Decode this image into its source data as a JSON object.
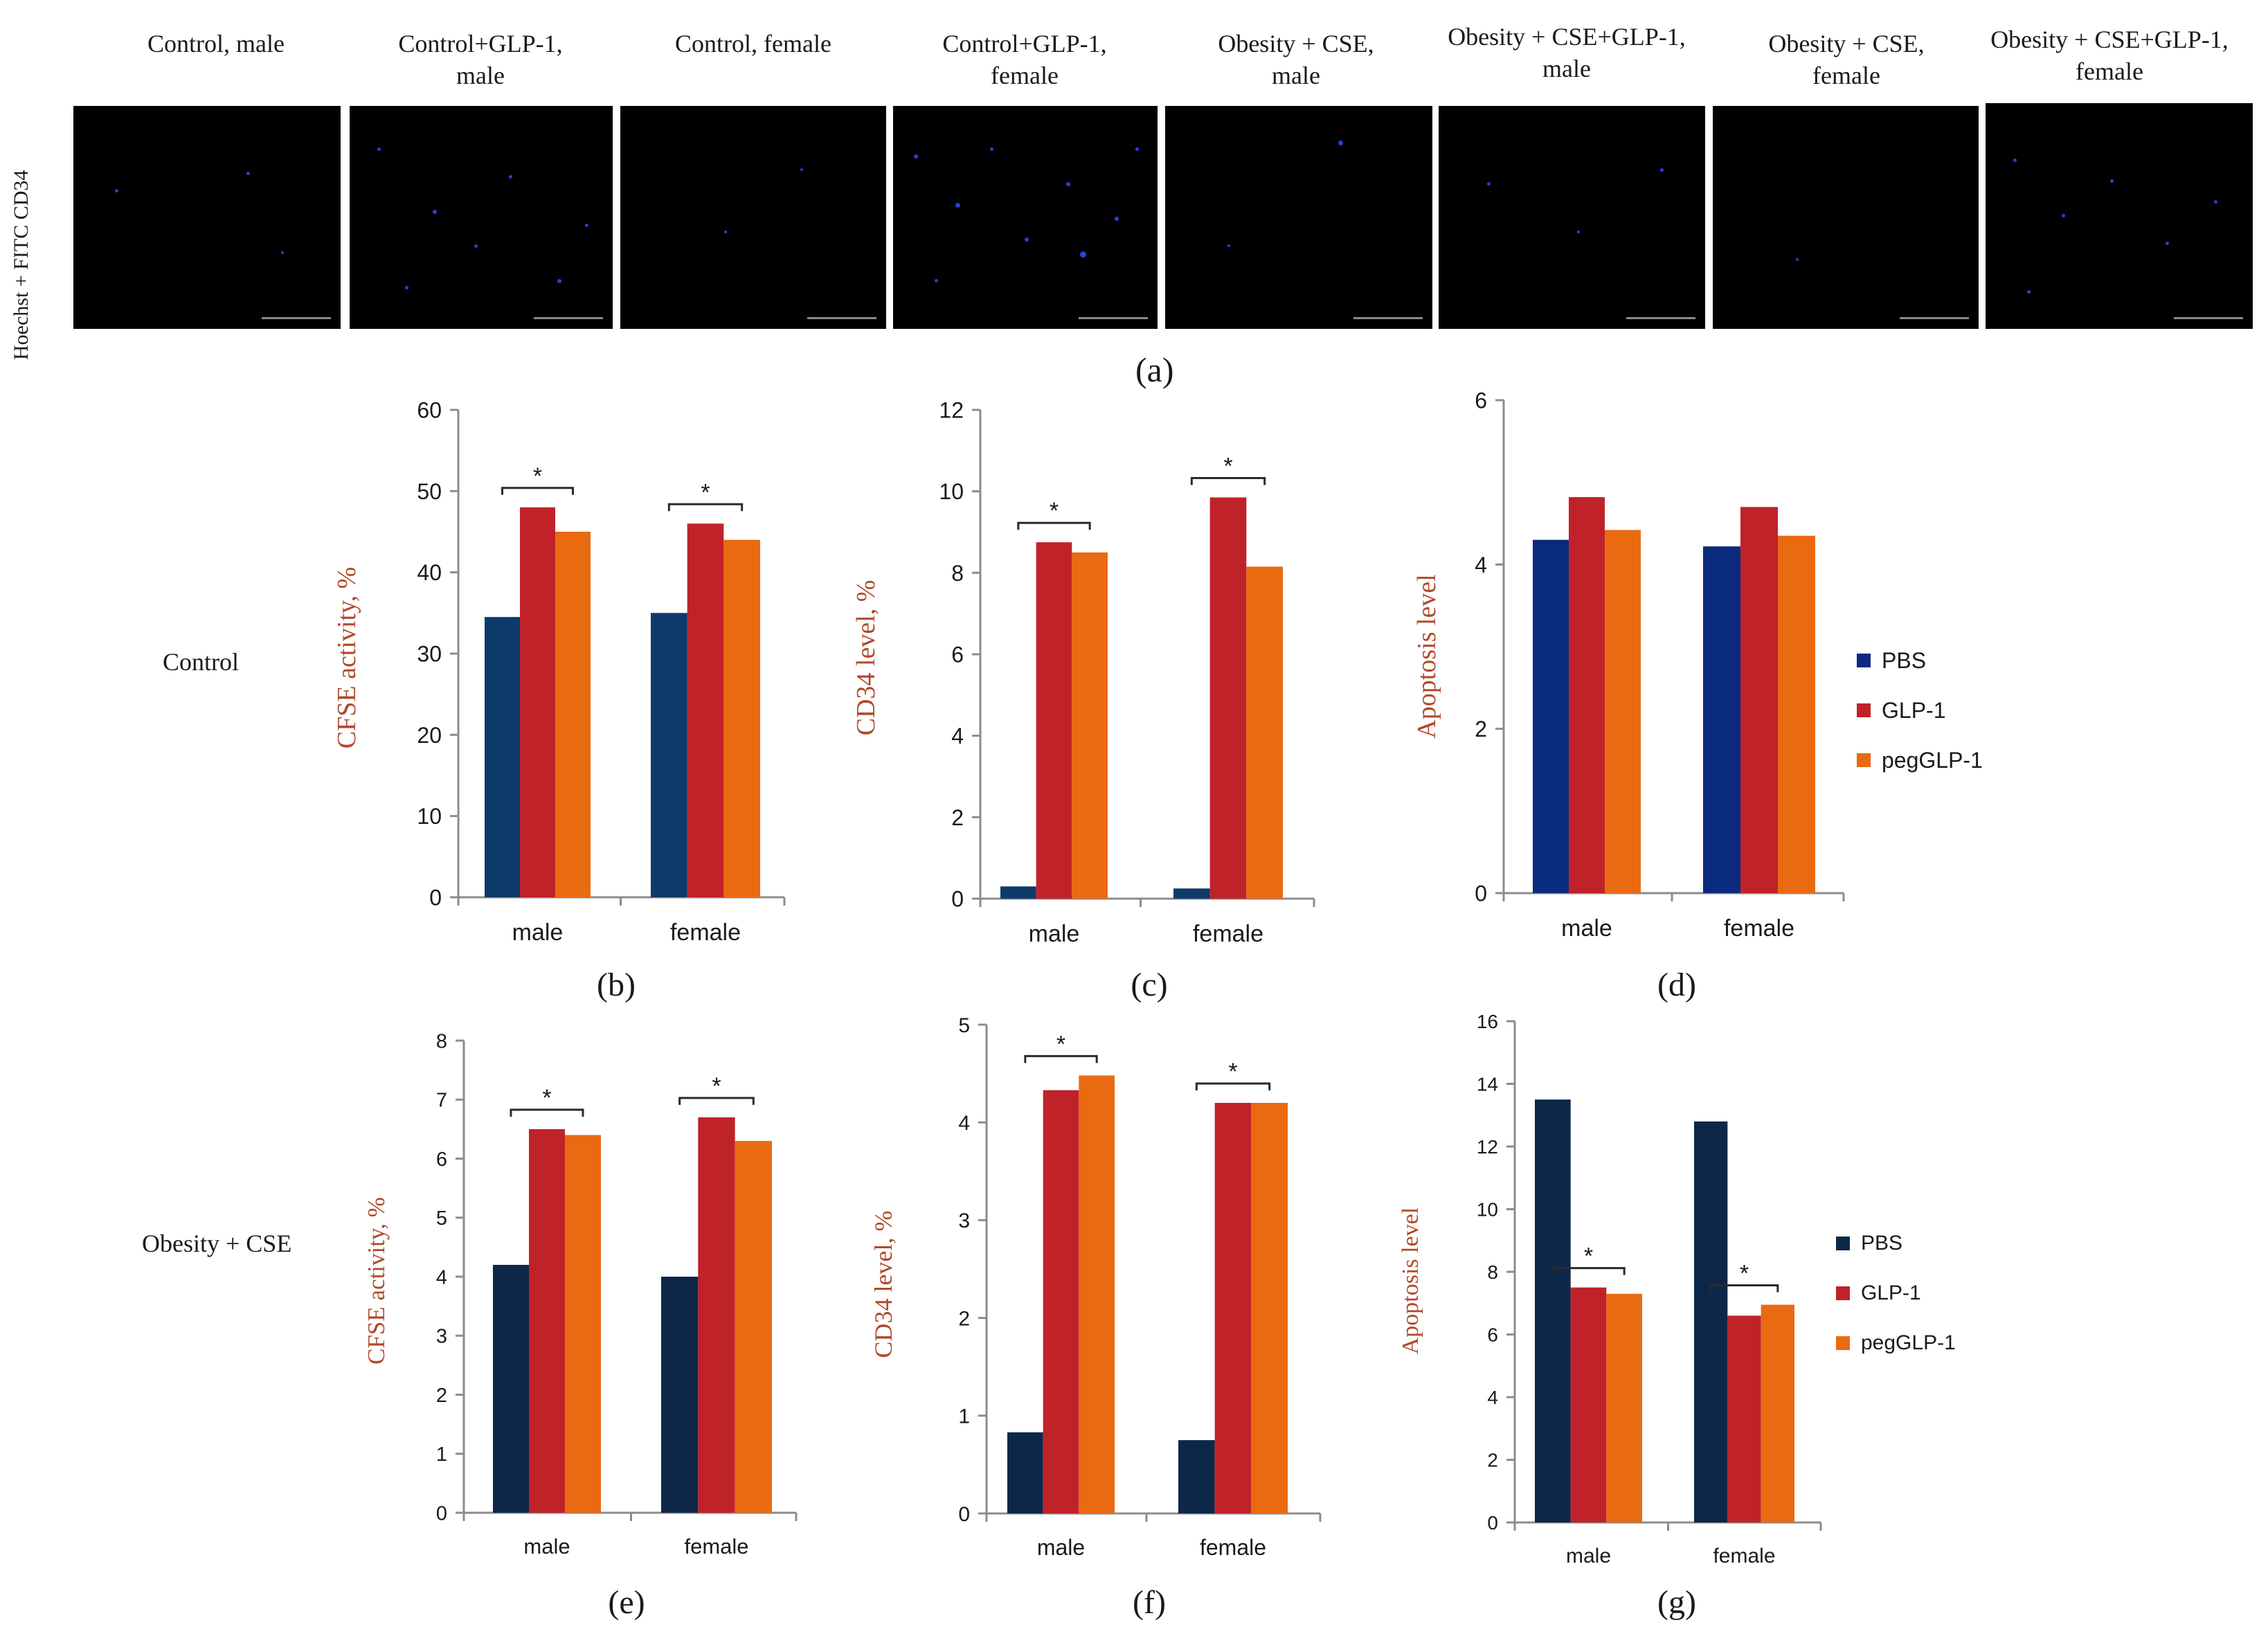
{
  "micrograph_row": {
    "stain_label": "Hoechst + FITC CD34",
    "panel_letter": "(a)",
    "images": [
      {
        "label_line1": "Control, male",
        "label_line2": ""
      },
      {
        "label_line1": "Control+GLP-1,",
        "label_line2": "male"
      },
      {
        "label_line1": "Control, female",
        "label_line2": ""
      },
      {
        "label_line1": "Control+GLP-1,",
        "label_line2": "female"
      },
      {
        "label_line1": "Obesity + CSE,",
        "label_line2": "male"
      },
      {
        "label_line1": "Obesity + CSE+GLP-1,",
        "label_line2": "male"
      },
      {
        "label_line1": "Obesity + CSE,",
        "label_line2": "female"
      },
      {
        "label_line1": "Obesity + CSE+GLP-1,",
        "label_line2": "female"
      }
    ]
  },
  "row_labels": {
    "control": "Control",
    "obesity": "Obesity + CSE"
  },
  "legend": {
    "top": [
      "PBS",
      "GLP-1",
      "pegGLP-1"
    ],
    "bottom": [
      "PBS",
      "GLP-1",
      "pegGLP-1"
    ]
  },
  "colors": {
    "top": [
      "#0e3a6a",
      "#c0222a",
      "#ea6a12"
    ],
    "bottom": [
      "#0d2748",
      "#c0222a",
      "#ea6a12"
    ],
    "d_pbs": "#0a2a7e"
  },
  "chart_data": [
    {
      "id": "b",
      "panel_letter": "(b)",
      "type": "bar",
      "categories": [
        "male",
        "female"
      ],
      "series": [
        {
          "name": "PBS",
          "values": [
            34.5,
            35
          ]
        },
        {
          "name": "GLP-1",
          "values": [
            48,
            46
          ]
        },
        {
          "name": "pegGLP-1",
          "values": [
            45,
            44
          ]
        }
      ],
      "ylabel": "CFSE activity, %",
      "ylim": [
        0,
        60
      ],
      "yticks": [
        0,
        10,
        20,
        30,
        40,
        50,
        60
      ],
      "significance": [
        "*",
        "*"
      ]
    },
    {
      "id": "c",
      "panel_letter": "(c)",
      "type": "bar",
      "categories": [
        "male",
        "female"
      ],
      "series": [
        {
          "name": "PBS",
          "values": [
            0.3,
            0.25
          ]
        },
        {
          "name": "GLP-1",
          "values": [
            8.75,
            9.85
          ]
        },
        {
          "name": "pegGLP-1",
          "values": [
            8.5,
            8.15
          ]
        }
      ],
      "ylabel": "CD34 level, %",
      "ylim": [
        0,
        12
      ],
      "yticks": [
        0,
        2,
        4,
        6,
        8,
        10,
        12
      ],
      "significance": [
        "*",
        "*"
      ]
    },
    {
      "id": "d",
      "panel_letter": "(d)",
      "type": "bar",
      "categories": [
        "male",
        "female"
      ],
      "series": [
        {
          "name": "PBS",
          "values": [
            4.3,
            4.22
          ]
        },
        {
          "name": "GLP-1",
          "values": [
            4.82,
            4.7
          ]
        },
        {
          "name": "pegGLP-1",
          "values": [
            4.42,
            4.35
          ]
        }
      ],
      "ylabel": "Apoptosis  level",
      "ylim": [
        0,
        6
      ],
      "yticks": [
        0,
        2,
        4,
        6
      ],
      "significance": []
    },
    {
      "id": "e",
      "panel_letter": "(e)",
      "type": "bar",
      "categories": [
        "male",
        "female"
      ],
      "series": [
        {
          "name": "PBS",
          "values": [
            4.2,
            4.0
          ]
        },
        {
          "name": "GLP-1",
          "values": [
            6.5,
            6.7
          ]
        },
        {
          "name": "pegGLP-1",
          "values": [
            6.4,
            6.3
          ]
        }
      ],
      "ylabel": "CFSE activity, %",
      "ylim": [
        0,
        8
      ],
      "yticks": [
        0,
        1,
        2,
        3,
        4,
        5,
        6,
        7,
        8
      ],
      "significance": [
        "*",
        "*"
      ]
    },
    {
      "id": "f",
      "panel_letter": "(f)",
      "type": "bar",
      "categories": [
        "male",
        "female"
      ],
      "series": [
        {
          "name": "PBS",
          "values": [
            0.83,
            0.75
          ]
        },
        {
          "name": "GLP-1",
          "values": [
            4.33,
            4.2
          ]
        },
        {
          "name": "pegGLP-1",
          "values": [
            4.48,
            4.2
          ]
        }
      ],
      "ylabel": "CD34 level, %",
      "ylim": [
        0,
        5
      ],
      "yticks": [
        0,
        1,
        2,
        3,
        4,
        5
      ],
      "significance": [
        "*",
        "*"
      ]
    },
    {
      "id": "g",
      "panel_letter": "(g)",
      "type": "bar",
      "categories": [
        "male",
        "female"
      ],
      "series": [
        {
          "name": "PBS",
          "values": [
            13.5,
            12.8
          ]
        },
        {
          "name": "GLP-1",
          "values": [
            7.5,
            6.6
          ]
        },
        {
          "name": "pegGLP-1",
          "values": [
            7.3,
            6.95
          ]
        }
      ],
      "ylabel": "Apoptosis  level",
      "ylim": [
        0,
        16
      ],
      "yticks": [
        0,
        2,
        4,
        6,
        8,
        10,
        12,
        14,
        16
      ],
      "significance": [
        "*",
        "*"
      ]
    }
  ]
}
